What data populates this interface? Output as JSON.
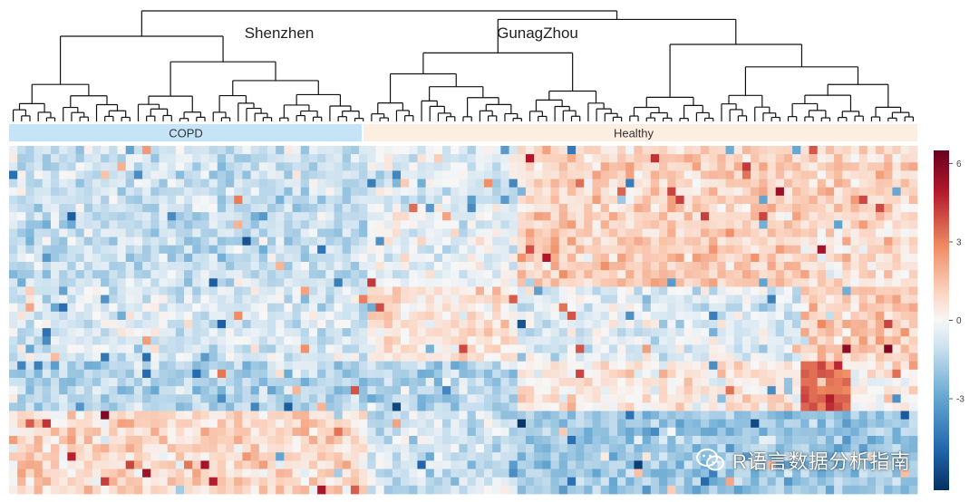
{
  "chart_data": {
    "type": "heatmap",
    "title": "",
    "cluster_labels": [
      "Shenzhen",
      "GunagZhou"
    ],
    "annotation_groups": [
      {
        "label": "COPD",
        "n_samples": 43,
        "color": "#c6e4f8"
      },
      {
        "label": "Healthy",
        "n_samples": 66,
        "color": "#fdeee2"
      }
    ],
    "n_rows": 42,
    "row_blocks": [
      {
        "pattern": "group_contrast_weak",
        "rows": 8
      },
      {
        "pattern": "healthy_subcluster_up",
        "rows": 9
      },
      {
        "pattern": "group_contrast_moderate",
        "rows": 9
      },
      {
        "pattern": "healthy_tail_strong_up",
        "rows": 6
      },
      {
        "pattern": "copd_up_healthy_down",
        "rows": 10
      }
    ],
    "colorbar": {
      "ticks": [
        6,
        3,
        0,
        -3
      ],
      "range": [
        -6.5,
        6.5
      ],
      "low_color": "#053061",
      "mid_color": "#f7f7f7",
      "high_color": "#67001f"
    }
  },
  "watermark": {
    "text": "R语言数据分析指南",
    "icon": "wechat-icon"
  }
}
